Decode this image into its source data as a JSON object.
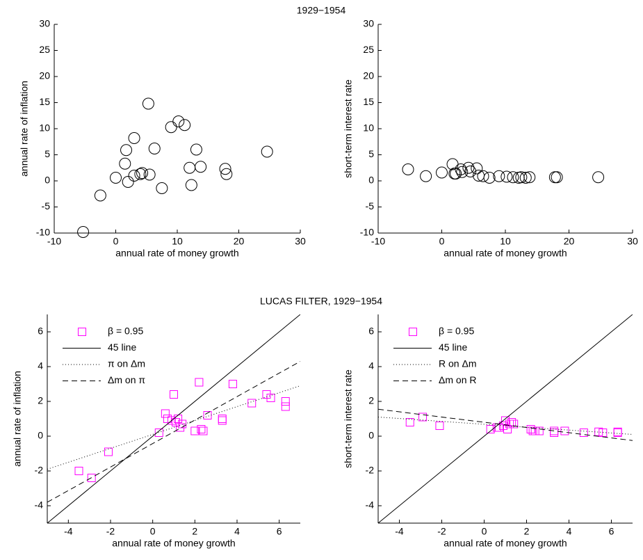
{
  "figure_titles": [
    "1929−1954",
    "LUCAS FILTER, 1929−1954"
  ],
  "chart_data": [
    {
      "type": "scatter",
      "xlabel": "annual rate of money growth",
      "ylabel": "annual rate of inflation",
      "xlim": [
        -10,
        30
      ],
      "ylim": [
        -10,
        30
      ],
      "xticks": [
        -10,
        0,
        10,
        20,
        30
      ],
      "yticks": [
        -10,
        -5,
        0,
        5,
        10,
        15,
        20,
        25,
        30
      ],
      "series": [
        {
          "marker": "circle",
          "color": "#000000",
          "x": [
            -5.3,
            -2.5,
            0,
            1.5,
            1.7,
            2,
            3,
            3,
            4,
            4.3,
            5.3,
            5.5,
            6.3,
            7.5,
            9,
            10.2,
            11.2,
            12,
            12.3,
            13.1,
            13.8,
            17.8,
            18,
            24.6
          ],
          "values": [
            -9.8,
            -2.8,
            0.6,
            3.3,
            5.9,
            -0.2,
            8.2,
            1,
            1.3,
            1.5,
            14.8,
            1.2,
            6.2,
            -1.4,
            10.3,
            11.4,
            10.7,
            2.5,
            -0.8,
            6,
            2.7,
            2.3,
            1.3,
            5.6
          ]
        }
      ]
    },
    {
      "type": "scatter",
      "xlabel": "annual rate of money growth",
      "ylabel": "short-term interest rate",
      "xlim": [
        -10,
        30
      ],
      "ylim": [
        -10,
        30
      ],
      "xticks": [
        -10,
        0,
        10,
        20,
        30
      ],
      "yticks": [
        -10,
        -5,
        0,
        5,
        10,
        15,
        20,
        25,
        30
      ],
      "series": [
        {
          "marker": "circle",
          "color": "#000000",
          "x": [
            -5.3,
            -2.5,
            0,
            1.7,
            2,
            2.2,
            3,
            3.2,
            4.2,
            4.5,
            5.5,
            5.8,
            6.5,
            7.5,
            9,
            10.2,
            11.2,
            12.1,
            12.5,
            13.2,
            13.8,
            17.8,
            18.1,
            24.6
          ],
          "values": [
            2.2,
            0.9,
            1.6,
            3.2,
            1.4,
            1.4,
            2.2,
            1.7,
            2.5,
            1.8,
            2.4,
            1,
            0.9,
            0.6,
            0.9,
            0.8,
            0.7,
            0.6,
            0.7,
            0.6,
            0.7,
            0.7,
            0.7,
            0.7
          ]
        }
      ]
    },
    {
      "type": "scatter",
      "xlabel": "annual rate of money growth",
      "ylabel": "annual rate of inflation",
      "xlim": [
        -5,
        7
      ],
      "ylim": [
        -5,
        7
      ],
      "xticks": [
        -4,
        -2,
        0,
        2,
        4,
        6
      ],
      "yticks": [
        -4,
        -2,
        0,
        2,
        4,
        6
      ],
      "legend": "upper left",
      "series": [
        {
          "name": "β = 0.95",
          "marker": "square",
          "color": "#ff00ff",
          "x": [
            -3.5,
            -2.9,
            -2.1,
            0.3,
            0.6,
            0.7,
            0.9,
            1,
            1.1,
            1.2,
            1.3,
            1.4,
            2,
            2.2,
            2.3,
            2.4,
            2.6,
            3.3,
            3.3,
            3.8,
            4.7,
            5.4,
            5.6,
            6.3,
            6.3
          ],
          "values": [
            -2,
            -2.4,
            -0.9,
            0.2,
            1.3,
            1,
            0.9,
            2.4,
            0.8,
            1,
            0.5,
            0.7,
            0.3,
            3.1,
            0.4,
            0.3,
            1.2,
            1,
            0.9,
            3,
            1.9,
            2.4,
            2.2,
            2,
            1.7
          ]
        },
        {
          "name": "45 line",
          "line_style": "solid",
          "color": "#000000",
          "x": [
            -5,
            7
          ],
          "values": [
            -5,
            7
          ]
        },
        {
          "name": "π on Δm",
          "line_style": "dotted",
          "color": "#000000",
          "x": [
            -5,
            7
          ],
          "values": [
            -1.9,
            2.9
          ]
        },
        {
          "name": "Δm on π",
          "line_style": "dashed",
          "color": "#000000",
          "x": [
            -5,
            7
          ],
          "values": [
            -3.8,
            4.3
          ]
        }
      ]
    },
    {
      "type": "scatter",
      "xlabel": "annual rate of money growth",
      "ylabel": "short-term interest rate",
      "xlim": [
        -5,
        7
      ],
      "ylim": [
        -5,
        7
      ],
      "xticks": [
        -4,
        -2,
        0,
        2,
        4,
        6
      ],
      "yticks": [
        -4,
        -2,
        0,
        2,
        4,
        6
      ],
      "legend": "upper left",
      "series": [
        {
          "name": "β = 0.95",
          "marker": "square",
          "color": "#ff00ff",
          "x": [
            -3.5,
            -2.9,
            -2.1,
            0.3,
            0.6,
            0.7,
            0.9,
            1,
            1.1,
            1.2,
            1.3,
            1.4,
            2.2,
            2.3,
            2.4,
            2.6,
            3.3,
            3.3,
            3.8,
            4.7,
            5.4,
            5.6,
            6.3,
            6.3
          ],
          "values": [
            0.8,
            1.1,
            0.6,
            0.4,
            0.5,
            0.5,
            0.6,
            0.9,
            0.4,
            0.7,
            0.8,
            0.7,
            0.4,
            0.3,
            0.3,
            0.3,
            0.3,
            0.2,
            0.3,
            0.2,
            0.25,
            0.2,
            0.2,
            0.25
          ]
        },
        {
          "name": "45 line",
          "line_style": "solid",
          "color": "#000000",
          "x": [
            -5,
            7
          ],
          "values": [
            -5,
            7
          ]
        },
        {
          "name": "R on Δm",
          "line_style": "dotted",
          "color": "#000000",
          "x": [
            -5,
            7
          ],
          "values": [
            1.1,
            0.1
          ]
        },
        {
          "name": "Δm on R",
          "line_style": "dashed",
          "color": "#000000",
          "x": [
            -5,
            7
          ],
          "values": [
            1.55,
            -0.25
          ]
        }
      ]
    }
  ]
}
